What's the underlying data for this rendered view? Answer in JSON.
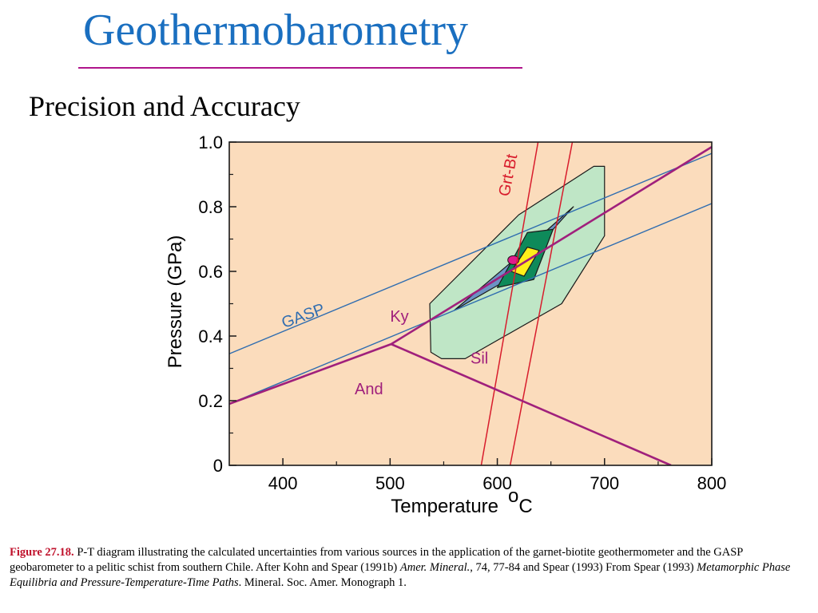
{
  "slide": {
    "title": "Geothermobarometry",
    "subtitle": "Precision and Accuracy"
  },
  "caption": {
    "label": "Figure 27.18.",
    "part1": " P-T diagram illustrating the calculated uncertainties from various sources in the application of the garnet-biotite geothermometer and the GASP geobarometer to a pelitic schist from southern Chile. After Kohn and Spear (1991b) ",
    "journal": "Amer. Mineral.",
    "part2": ", 74, 77-84 and Spear (1993) From Spear (1993) ",
    "book": "Metamorphic Phase Equilibria and Pressure-Temperature-Time Paths",
    "part3": ". Mineral. Soc. Amer. Monograph 1."
  },
  "chart_data": {
    "type": "line",
    "xlabel": "Temperature",
    "xunit": "oC",
    "ylabel": "Pressure (GPa)",
    "xlim": [
      350,
      800
    ],
    "ylim": [
      0,
      1.0
    ],
    "xticks": [
      "400",
      "500",
      "600",
      "700",
      "800"
    ],
    "xtick_values": [
      400,
      500,
      600,
      700,
      800
    ],
    "yticks": [
      "0",
      "0.2",
      "0.4",
      "0.6",
      "0.8",
      "1.0"
    ],
    "ytick_values": [
      0,
      0.2,
      0.4,
      0.6,
      0.8,
      1.0
    ],
    "grid": false,
    "background": "#fbdcbc",
    "phase_lines": [
      {
        "name": "Ky-Sil",
        "color": "#a0207c",
        "points": [
          [
            501,
            0.375
          ],
          [
            800,
            0.985
          ]
        ]
      },
      {
        "name": "And-Ky",
        "color": "#a0207c",
        "points": [
          [
            350,
            0.19
          ],
          [
            501,
            0.375
          ]
        ]
      },
      {
        "name": "And-Sil",
        "color": "#a0207c",
        "points": [
          [
            501,
            0.375
          ],
          [
            762,
            0.0
          ]
        ]
      }
    ],
    "gasp_lines": [
      {
        "name": "GASP",
        "color": "#2f6db0",
        "points": [
          [
            350,
            0.345
          ],
          [
            800,
            0.965
          ]
        ]
      },
      {
        "name": "GASP",
        "color": "#2f6db0",
        "points": [
          [
            350,
            0.19
          ],
          [
            800,
            0.81
          ]
        ]
      }
    ],
    "grtbt_lines": [
      {
        "name": "Grt-Bt",
        "color": "#d81c2c",
        "points": [
          [
            585,
            0.0
          ],
          [
            638,
            1.0
          ]
        ]
      },
      {
        "name": "Grt-Bt",
        "color": "#d81c2c",
        "points": [
          [
            612,
            0.0
          ],
          [
            670,
            1.0
          ]
        ]
      }
    ],
    "regions": [
      {
        "name": "outer-uncertainty",
        "fill": "#bfe6c6",
        "stroke": "#1a1a1a",
        "points": [
          [
            538,
            0.35
          ],
          [
            537,
            0.5
          ],
          [
            620,
            0.775
          ],
          [
            690,
            0.925
          ],
          [
            700,
            0.925
          ],
          [
            700,
            0.71
          ],
          [
            660,
            0.5
          ],
          [
            570,
            0.33
          ],
          [
            548,
            0.33
          ]
        ]
      },
      {
        "name": "inner-ellipse",
        "fill": "#6b93c4",
        "stroke": "#1a1a1a",
        "points": [
          [
            560,
            0.48
          ],
          [
            610,
            0.62
          ],
          [
            671,
            0.8
          ],
          [
            610,
            0.575
          ]
        ]
      },
      {
        "name": "green-diamond",
        "fill": "#0e8a5a",
        "stroke": "#1a1a1a",
        "points": [
          [
            628,
            0.72
          ],
          [
            652,
            0.73
          ],
          [
            634,
            0.575
          ],
          [
            600,
            0.55
          ]
        ]
      },
      {
        "name": "yellow-diamond",
        "fill": "#ffef1a",
        "stroke": "#1a1a1a",
        "points": [
          [
            613,
            0.6
          ],
          [
            628,
            0.675
          ],
          [
            639,
            0.665
          ],
          [
            625,
            0.585
          ]
        ]
      }
    ],
    "center_point": {
      "x": 615,
      "y": 0.635,
      "fill": "#e01a8c"
    },
    "labels": [
      {
        "text": "Ky",
        "x": 500,
        "y": 0.445,
        "color": "#a0207c"
      },
      {
        "text": "Sil",
        "x": 575,
        "y": 0.315,
        "color": "#a0207c"
      },
      {
        "text": "And",
        "x": 467,
        "y": 0.22,
        "color": "#a0207c"
      },
      {
        "text": "GASP",
        "x": 401,
        "y": 0.424,
        "color": "#2f6db0",
        "rotate": -20
      },
      {
        "text": "Grt-Bt",
        "x": 611,
        "y": 0.83,
        "color": "#d81c2c",
        "rotate": -79
      }
    ]
  }
}
